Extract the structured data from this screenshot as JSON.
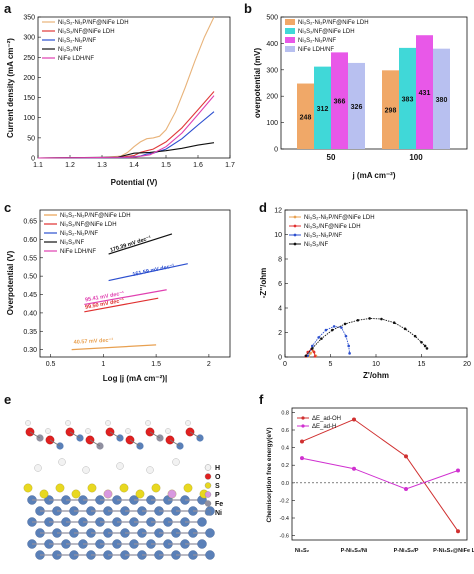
{
  "panels": {
    "a": {
      "letter": "a",
      "xlabel": "Potential (V)",
      "ylabel": "Current density (mA cm⁻²)",
      "xticks": [
        "1.1",
        "1.2",
        "1.3",
        "1.4",
        "1.5",
        "1.6",
        "1.7"
      ],
      "yticks": [
        "0",
        "50",
        "100",
        "150",
        "200",
        "250",
        "300",
        "350"
      ],
      "xlim": [
        1.1,
        1.7
      ],
      "ylim": [
        0,
        350
      ],
      "legend": [
        "Ni₃S₂-Ni₂P/NF@NiFe LDH",
        "Ni₃S₂/NF@NiFe LDH",
        "Ni₃S₂-Ni₂P/NF",
        "Ni₃S₂/NF",
        "NiFe LDH/NF"
      ],
      "colors": [
        "#e8b37a",
        "#e03a3a",
        "#2c4fcf",
        "#111111",
        "#e040b0"
      ],
      "series": [
        {
          "name": "Ni₃S₂-Ni₂P/NF@NiFe LDH",
          "x": [
            1.1,
            1.3,
            1.36,
            1.38,
            1.4,
            1.42,
            1.44,
            1.46,
            1.48,
            1.5,
            1.53,
            1.56,
            1.59,
            1.62,
            1.65
          ],
          "y": [
            0,
            1,
            5,
            14,
            28,
            40,
            48,
            50,
            54,
            70,
            115,
            175,
            240,
            300,
            350
          ]
        },
        {
          "name": "Ni₃S₂/NF@NiFe LDH",
          "x": [
            1.1,
            1.35,
            1.4,
            1.42,
            1.44,
            1.46,
            1.5,
            1.55,
            1.6,
            1.65
          ],
          "y": [
            0,
            1,
            6,
            14,
            18,
            22,
            40,
            75,
            120,
            165
          ]
        },
        {
          "name": "Ni₃S₂-Ni₂P/NF",
          "x": [
            1.1,
            1.38,
            1.42,
            1.44,
            1.46,
            1.5,
            1.55,
            1.6,
            1.65
          ],
          "y": [
            0,
            1,
            5,
            10,
            12,
            22,
            48,
            82,
            115
          ]
        },
        {
          "name": "Ni₃S₂/NF",
          "x": [
            1.1,
            1.35,
            1.4,
            1.45,
            1.5,
            1.55,
            1.6,
            1.65
          ],
          "y": [
            0,
            2,
            12,
            14,
            18,
            24,
            32,
            38
          ]
        },
        {
          "name": "NiFe LDH/NF",
          "x": [
            1.1,
            1.4,
            1.45,
            1.5,
            1.55,
            1.6,
            1.65
          ],
          "y": [
            0,
            2,
            8,
            28,
            62,
            108,
            155
          ]
        }
      ]
    },
    "b": {
      "letter": "b",
      "xlabel": "j (mA cm⁻²)",
      "ylabel": "overpotential (mV)",
      "yticks": [
        "0",
        "100",
        "200",
        "300",
        "400",
        "500"
      ],
      "ylim": [
        0,
        500
      ],
      "categories": [
        "50",
        "100"
      ],
      "legend": [
        "Ni₃S₂-Ni₂P/NF@NiFe LDH",
        "Ni₃S₂/NF@NiFe LDH",
        "Ni₃S₂-Ni₂P/NF",
        "NiFe LDH/NF"
      ],
      "colors": [
        "#f0a868",
        "#40d8d8",
        "#e858e8",
        "#b8c0f0"
      ],
      "series": [
        {
          "name": "Ni₃S₂-Ni₂P/NF@NiFe LDH",
          "values": [
            248,
            298
          ],
          "labels": [
            "248",
            "298"
          ]
        },
        {
          "name": "Ni₃S₂/NF@NiFe LDH",
          "values": [
            312,
            383
          ],
          "labels": [
            "312",
            "383"
          ]
        },
        {
          "name": "Ni₃S₂-Ni₂P/NF",
          "values": [
            366,
            431
          ],
          "labels": [
            "366",
            "431"
          ]
        },
        {
          "name": "NiFe LDH/NF",
          "values": [
            326,
            380
          ],
          "labels": [
            "326",
            "380"
          ]
        }
      ]
    },
    "c": {
      "letter": "c",
      "xlabel": "Log |j (mA cm⁻²)|",
      "ylabel": "Overpotential (V)",
      "xticks": [
        "0.5",
        "1",
        "1.5",
        "2"
      ],
      "yticks": [
        "0.30",
        "0.35",
        "0.40",
        "0.45",
        "0.50",
        "0.55",
        "0.60",
        "0.65"
      ],
      "xlim": [
        0.4,
        2.2
      ],
      "ylim": [
        0.28,
        0.68
      ],
      "legend": [
        "Ni₃S₂-Ni₂P/NF@NiFe LDH",
        "Ni₃S₂/NF@NiFe LDH",
        "Ni₃S₂-Ni₂P/NF",
        "Ni₃S₂/NF",
        "NiFe LDH/NF"
      ],
      "colors": [
        "#e8a050",
        "#e03030",
        "#2c4fcf",
        "#111111",
        "#e040b0"
      ],
      "series": [
        {
          "name": "Ni₃S₂-Ni₂P/NF@NiFe LDH",
          "x": [
            0.7,
            1.5
          ],
          "y": [
            0.3,
            0.313
          ],
          "annotation": "40.57 mV dec⁻¹",
          "ann_at": [
            0.72,
            0.316
          ]
        },
        {
          "name": "Ni₃S₂/NF@NiFe LDH",
          "x": [
            0.82,
            1.52
          ],
          "y": [
            0.403,
            0.44
          ],
          "annotation": "99.50 mV dec⁻¹",
          "ann_at": [
            0.83,
            0.411
          ]
        },
        {
          "name": "Ni₃S₂-Ni₂P/NF",
          "x": [
            1.05,
            1.8
          ],
          "y": [
            0.488,
            0.534
          ],
          "annotation": "161.59 mV dec⁻¹",
          "ann_at": [
            1.28,
            0.5
          ]
        },
        {
          "name": "Ni₃S₂/NF",
          "x": [
            1.05,
            1.65
          ],
          "y": [
            0.56,
            0.615
          ],
          "annotation": "170.39 mV dec⁻¹",
          "ann_at": [
            1.07,
            0.566
          ]
        },
        {
          "name": "NiFe LDH/NF",
          "x": [
            0.82,
            1.6
          ],
          "y": [
            0.423,
            0.463
          ],
          "annotation": "95.41 mV dec⁻¹",
          "ann_at": [
            0.83,
            0.431
          ]
        }
      ]
    },
    "d": {
      "letter": "d",
      "xlabel": "Z'/ohm",
      "ylabel": "-Z''/ohm",
      "xticks": [
        "0",
        "5",
        "10",
        "15",
        "20"
      ],
      "yticks": [
        "0",
        "2",
        "4",
        "6",
        "8",
        "10",
        "12"
      ],
      "xlim": [
        0,
        20
      ],
      "ylim": [
        0,
        12
      ],
      "legend": [
        "Ni₃S₂-Ni₂P/NF@NiFe LDH",
        "Ni₃S₂/NF@NiFe LDH",
        "Ni₃S₂-Ni₂P/NF",
        "Ni₃S₂/NF"
      ],
      "colors": [
        "#e8a050",
        "#e03030",
        "#2c4fcf",
        "#111111"
      ],
      "series": [
        {
          "name": "Ni₃S₂-Ni₂P/NF@NiFe LDH",
          "x": [
            2.6,
            2.8,
            3.1,
            3.4
          ],
          "y": [
            0.05,
            0.3,
            0.5,
            0.1
          ]
        },
        {
          "name": "Ni₃S₂/NF@NiFe LDH",
          "x": [
            2.3,
            2.5,
            2.9,
            3.2,
            3.3
          ],
          "y": [
            0.05,
            0.4,
            0.65,
            0.4,
            0.05
          ]
        },
        {
          "name": "Ni₃S₂-Ni₂P/NF",
          "x": [
            2.5,
            3.0,
            3.7,
            4.5,
            5.4,
            6.2,
            6.7,
            7.0,
            7.1
          ],
          "y": [
            0.1,
            0.9,
            1.6,
            2.2,
            2.5,
            2.4,
            1.7,
            0.9,
            0.3
          ]
        },
        {
          "name": "Ni₃S₂/NF",
          "x": [
            2.3,
            3.0,
            4.0,
            5.2,
            6.6,
            8.0,
            9.3,
            10.6,
            12.0,
            13.2,
            14.3,
            15.0,
            15.4,
            15.6
          ],
          "y": [
            0.1,
            0.7,
            1.5,
            2.2,
            2.7,
            3.0,
            3.15,
            3.1,
            2.8,
            2.3,
            1.7,
            1.2,
            0.9,
            0.7
          ]
        }
      ]
    },
    "e": {
      "letter": "e",
      "legend": [
        {
          "symbol": "H",
          "color": "#f2f2f2"
        },
        {
          "symbol": "O",
          "color": "#e02020"
        },
        {
          "symbol": "S",
          "color": "#e8d820"
        },
        {
          "symbol": "P",
          "color": "#d898e0"
        },
        {
          "symbol": "Fe",
          "color": "#9090a0"
        },
        {
          "symbol": "Ni",
          "color": "#5a80b8"
        }
      ]
    },
    "f": {
      "letter": "f",
      "ylabel": "Chemisorption free energy(eV)",
      "categories": [
        "Ni₃S₂",
        "P-Ni₃S₂/Ni",
        "P-Ni₃S₂/P",
        "P-Ni₃S₂@NiFe LDH"
      ],
      "yticks": [
        "-0.6",
        "-0.4",
        "-0.2",
        "0.0",
        "0.2",
        "0.4",
        "0.6",
        "0.8"
      ],
      "ylim": [
        -0.65,
        0.85
      ],
      "legend": [
        "ΔE_ad-OH",
        "ΔE_ad-H"
      ],
      "colors": [
        "#d03030",
        "#d030d0"
      ],
      "series": [
        {
          "name": "ΔE_ad-OH",
          "values": [
            0.47,
            0.72,
            0.3,
            -0.55
          ]
        },
        {
          "name": "ΔE_ad-H",
          "values": [
            0.28,
            0.16,
            -0.07,
            0.14
          ]
        }
      ]
    }
  }
}
